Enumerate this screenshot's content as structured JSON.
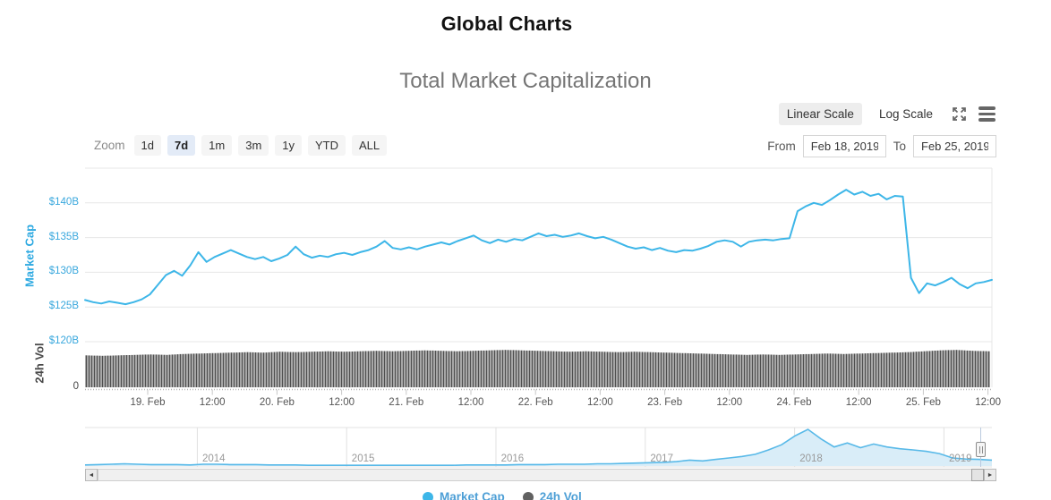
{
  "page": {
    "title": "Global Charts"
  },
  "chart": {
    "subtitle": "Total Market Capitalization",
    "scale_toggle": {
      "linear_label": "Linear Scale",
      "log_label": "Log Scale",
      "selected": "linear"
    },
    "zoom_controls": {
      "label": "Zoom",
      "options": [
        {
          "label": "1d",
          "selected": false
        },
        {
          "label": "7d",
          "selected": true
        },
        {
          "label": "1m",
          "selected": false
        },
        {
          "label": "3m",
          "selected": false
        },
        {
          "label": "1y",
          "selected": false
        },
        {
          "label": "YTD",
          "selected": false
        },
        {
          "label": "ALL",
          "selected": false
        }
      ]
    },
    "date_range": {
      "from_label": "From",
      "from_value": "Feb 18, 2019",
      "to_label": "To",
      "to_value": "Feb 25, 2019"
    },
    "icons": {
      "expand": "expand-icon",
      "menu": "menu-icon",
      "scroll_left": "◄",
      "scroll_right": "►"
    },
    "colors": {
      "line_blue": "#3db6e8",
      "axis_label_blue": "#38a7dd",
      "volume_bar": "#4f4f4f",
      "navigator_fill": "#d9edf8",
      "navigator_line": "#58b9e8",
      "gridline": "#e7e7e7",
      "legend_marker_volume": "#616161"
    },
    "legend": [
      {
        "label": "Market Cap",
        "color": "#3db6e8"
      },
      {
        "label": "24h Vol",
        "color": "#616161"
      }
    ]
  },
  "chart_data": [
    {
      "type": "line",
      "name": "Market Cap",
      "ylabel": "Market Cap",
      "unit": "USD billions",
      "ylim_billions": [
        120,
        145
      ],
      "yticks": [
        "$140B",
        "$135B",
        "$130B",
        "$125B",
        "$120B"
      ],
      "x_axis_labels": [
        "19. Feb",
        "12:00",
        "20. Feb",
        "12:00",
        "21. Feb",
        "12:00",
        "22. Feb",
        "12:00",
        "23. Feb",
        "12:00",
        "24. Feb",
        "12:00",
        "25. Feb",
        "12:00"
      ],
      "values_billions": [
        126.0,
        125.7,
        125.5,
        125.8,
        125.6,
        125.4,
        125.7,
        126.1,
        126.8,
        128.2,
        129.6,
        130.2,
        129.5,
        131.0,
        132.9,
        131.5,
        132.2,
        132.7,
        133.2,
        132.7,
        132.2,
        131.9,
        132.2,
        131.6,
        132.0,
        132.5,
        133.7,
        132.6,
        132.1,
        132.4,
        132.2,
        132.6,
        132.8,
        132.5,
        132.9,
        133.2,
        133.7,
        134.5,
        133.5,
        133.3,
        133.6,
        133.3,
        133.7,
        134.0,
        134.3,
        134.0,
        134.5,
        134.9,
        135.3,
        134.6,
        134.2,
        134.7,
        134.4,
        134.8,
        134.6,
        135.1,
        135.6,
        135.2,
        135.4,
        135.1,
        135.3,
        135.6,
        135.2,
        134.9,
        135.1,
        134.7,
        134.2,
        133.7,
        133.4,
        133.6,
        133.2,
        133.5,
        133.1,
        132.9,
        133.2,
        133.1,
        133.4,
        133.8,
        134.4,
        134.6,
        134.4,
        133.7,
        134.4,
        134.6,
        134.7,
        134.6,
        134.8,
        134.9,
        138.8,
        139.5,
        140.0,
        139.7,
        140.4,
        141.2,
        141.9,
        141.2,
        141.6,
        141.0,
        141.3,
        140.5,
        141.0,
        140.9,
        129.2,
        127.0,
        128.4,
        128.1,
        128.6,
        129.2,
        128.3,
        127.7,
        128.4,
        128.6,
        128.9
      ]
    },
    {
      "type": "bar",
      "name": "24h Vol",
      "yticks": [
        "$120B",
        "0"
      ],
      "values_relative": [
        0.7,
        0.69,
        0.7,
        0.71,
        0.72,
        0.71,
        0.73,
        0.74,
        0.75,
        0.76,
        0.77,
        0.76,
        0.78,
        0.77,
        0.78,
        0.79,
        0.78,
        0.79,
        0.8,
        0.79,
        0.8,
        0.81,
        0.8,
        0.79,
        0.8,
        0.81,
        0.82,
        0.81,
        0.8,
        0.79,
        0.78,
        0.79,
        0.78,
        0.77,
        0.78,
        0.77,
        0.76,
        0.75,
        0.74,
        0.73,
        0.72,
        0.71,
        0.72,
        0.71,
        0.72,
        0.73,
        0.74,
        0.73,
        0.74,
        0.75,
        0.76,
        0.77,
        0.79,
        0.81,
        0.82,
        0.8,
        0.79
      ]
    },
    {
      "type": "area",
      "name": "navigator",
      "years": [
        "2014",
        "2015",
        "2016",
        "2017",
        "2018",
        "2019"
      ],
      "values_relative": [
        0.03,
        0.04,
        0.05,
        0.06,
        0.05,
        0.04,
        0.04,
        0.04,
        0.03,
        0.05,
        0.05,
        0.04,
        0.04,
        0.04,
        0.03,
        0.03,
        0.03,
        0.02,
        0.02,
        0.02,
        0.02,
        0.02,
        0.02,
        0.02,
        0.02,
        0.02,
        0.02,
        0.02,
        0.02,
        0.03,
        0.03,
        0.03,
        0.03,
        0.04,
        0.04,
        0.04,
        0.05,
        0.05,
        0.05,
        0.06,
        0.06,
        0.07,
        0.08,
        0.09,
        0.1,
        0.12,
        0.16,
        0.14,
        0.18,
        0.22,
        0.26,
        0.32,
        0.44,
        0.58,
        0.82,
        1.0,
        0.74,
        0.52,
        0.63,
        0.5,
        0.6,
        0.52,
        0.47,
        0.44,
        0.4,
        0.34,
        0.22,
        0.19,
        0.18,
        0.16
      ]
    }
  ]
}
